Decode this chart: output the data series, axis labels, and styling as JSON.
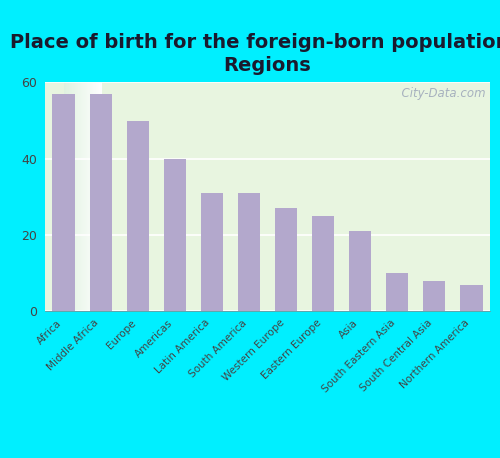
{
  "title": "Place of birth for the foreign-born population -\nRegions",
  "categories": [
    "Africa",
    "Middle Africa",
    "Europe",
    "Americas",
    "Latin America",
    "South America",
    "Western Europe",
    "Eastern Europe",
    "Asia",
    "South Eastern Asia",
    "South Central Asia",
    "Northern America"
  ],
  "values": [
    57,
    57,
    50,
    40,
    31,
    31,
    27,
    25,
    21,
    10,
    8,
    7
  ],
  "bar_color": "#b3a8cc",
  "background_outer": "#00efff",
  "ylim": [
    0,
    60
  ],
  "yticks": [
    0,
    20,
    40,
    60
  ],
  "title_fontsize": 14,
  "tick_label_fontsize": 7.5,
  "watermark_text": "  City-Data.com",
  "title_color": "#1a1a2e"
}
